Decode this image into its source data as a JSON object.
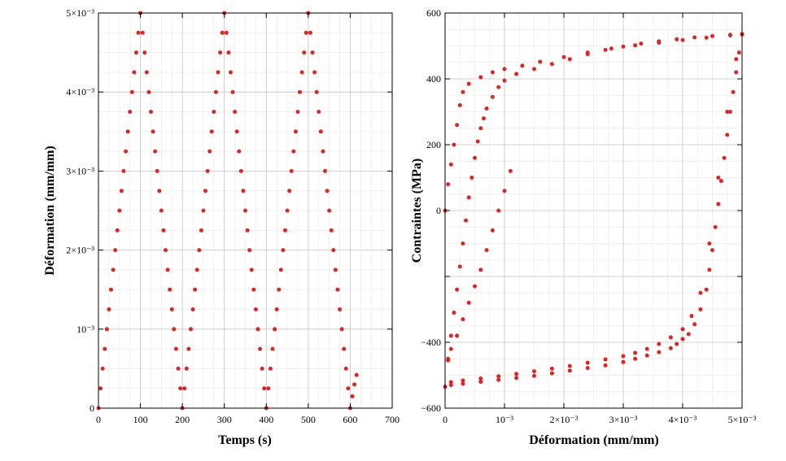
{
  "chart_data": [
    {
      "type": "scatter",
      "title": "",
      "xlabel": "Temps (s)",
      "ylabel": "Déformation (mm/mm)",
      "xlim": [
        0,
        700
      ],
      "ylim": [
        0,
        0.005
      ],
      "grid": true,
      "marker_color": "#e02424",
      "xticks": [
        {
          "value": 0,
          "label": "0"
        },
        {
          "value": 100,
          "label": "100"
        },
        {
          "value": 200,
          "label": "200"
        },
        {
          "value": 300,
          "label": "300"
        },
        {
          "value": 400,
          "label": "400"
        },
        {
          "value": 500,
          "label": "500"
        },
        {
          "value": 600,
          "label": "600"
        },
        {
          "value": 700,
          "label": "700"
        }
      ],
      "yticks": [
        {
          "value": 0,
          "label": "0"
        },
        {
          "value": 0.001,
          "label": "10⁻³"
        },
        {
          "value": 0.002,
          "label": "2×10⁻³"
        },
        {
          "value": 0.003,
          "label": "3×10⁻³"
        },
        {
          "value": 0.004,
          "label": "4×10⁻³"
        },
        {
          "value": 0.005,
          "label": "5×10⁻³"
        }
      ],
      "x": [
        0,
        5,
        10,
        15,
        20,
        25,
        30,
        35,
        40,
        45,
        50,
        55,
        60,
        65,
        70,
        75,
        80,
        85,
        90,
        95,
        100,
        105,
        110,
        115,
        120,
        125,
        130,
        135,
        140,
        145,
        150,
        155,
        160,
        165,
        170,
        175,
        180,
        185,
        190,
        195,
        200,
        205,
        210,
        215,
        220,
        225,
        230,
        235,
        240,
        245,
        250,
        255,
        260,
        265,
        270,
        275,
        280,
        285,
        290,
        295,
        300,
        305,
        310,
        315,
        320,
        325,
        330,
        335,
        340,
        345,
        350,
        355,
        360,
        365,
        370,
        375,
        380,
        385,
        390,
        395,
        400,
        405,
        410,
        415,
        420,
        425,
        430,
        435,
        440,
        445,
        450,
        455,
        460,
        465,
        470,
        475,
        480,
        485,
        490,
        495,
        500,
        505,
        510,
        515,
        520,
        525,
        530,
        535,
        540,
        545,
        550,
        555,
        560,
        565,
        570,
        575,
        580,
        585,
        590,
        595,
        600,
        605,
        610,
        615
      ],
      "y": [
        0,
        0.00025,
        0.0005,
        0.00075,
        0.001,
        0.00125,
        0.0015,
        0.00175,
        0.002,
        0.00225,
        0.0025,
        0.00275,
        0.003,
        0.00325,
        0.0035,
        0.00375,
        0.004,
        0.00425,
        0.0045,
        0.00475,
        0.005,
        0.00475,
        0.0045,
        0.00425,
        0.004,
        0.00375,
        0.0035,
        0.00325,
        0.003,
        0.00275,
        0.0025,
        0.00225,
        0.002,
        0.00175,
        0.0015,
        0.00125,
        0.001,
        0.00075,
        0.0005,
        0.00025,
        0,
        0.00025,
        0.0005,
        0.00075,
        0.001,
        0.00125,
        0.0015,
        0.00175,
        0.002,
        0.00225,
        0.0025,
        0.00275,
        0.003,
        0.00325,
        0.0035,
        0.00375,
        0.004,
        0.00425,
        0.0045,
        0.00475,
        0.005,
        0.00475,
        0.0045,
        0.00425,
        0.004,
        0.00375,
        0.0035,
        0.00325,
        0.003,
        0.00275,
        0.0025,
        0.00225,
        0.002,
        0.00175,
        0.0015,
        0.00125,
        0.001,
        0.00075,
        0.0005,
        0.00025,
        0,
        0.00025,
        0.0005,
        0.00075,
        0.001,
        0.00125,
        0.0015,
        0.00175,
        0.002,
        0.00225,
        0.0025,
        0.00275,
        0.003,
        0.00325,
        0.0035,
        0.00375,
        0.004,
        0.00425,
        0.0045,
        0.00475,
        0.005,
        0.00475,
        0.0045,
        0.00425,
        0.004,
        0.00375,
        0.0035,
        0.00325,
        0.003,
        0.00275,
        0.0025,
        0.00225,
        0.002,
        0.00175,
        0.0015,
        0.00125,
        0.001,
        0.00075,
        0.0005,
        0.00025,
        0,
        0.00015,
        0.0003,
        0.00042
      ]
    },
    {
      "type": "scatter",
      "title": "",
      "xlabel": "Déformation (mm/mm)",
      "ylabel": "Contraintes (MPa)",
      "xlim": [
        0,
        0.005
      ],
      "ylim": [
        -600,
        600
      ],
      "grid": true,
      "marker_color": "#e02424",
      "xticks": [
        {
          "value": 0,
          "label": "0"
        },
        {
          "value": 0.001,
          "label": "10⁻³"
        },
        {
          "value": 0.002,
          "label": "2×10⁻³"
        },
        {
          "value": 0.003,
          "label": "3×10⁻³"
        },
        {
          "value": 0.004,
          "label": "4×10⁻³"
        },
        {
          "value": 0.005,
          "label": "5×10⁻³"
        }
      ],
      "yticks": [
        {
          "value": -600,
          "label": "−600"
        },
        {
          "value": -400,
          "label": "−400"
        },
        {
          "value": -200,
          "label": ""
        },
        {
          "value": 0,
          "label": "0"
        },
        {
          "value": 200,
          "label": "200"
        },
        {
          "value": 400,
          "label": "400"
        },
        {
          "value": 600,
          "label": "600"
        }
      ],
      "x": [
        0,
        5e-05,
        0.0001,
        0.00015,
        0.0002,
        0.00025,
        0.0003,
        0.0004,
        0.0006,
        0.0008,
        0.001,
        0.0013,
        0.0016,
        0.002,
        0.0024,
        0.0028,
        0.0032,
        0.0036,
        0.004,
        0.0044,
        0.0048,
        0.005,
        0.00495,
        0.0049,
        0.00485,
        0.0048,
        0.00475,
        0.0047,
        0.00465,
        0.0046,
        0.00455,
        0.0045,
        0.00445,
        0.0044,
        0.0043,
        0.0042,
        0.0041,
        0.004,
        0.0039,
        0.0038,
        0.0036,
        0.0034,
        0.0032,
        0.003,
        0.0027,
        0.0024,
        0.0021,
        0.0018,
        0.0015,
        0.0012,
        0.0009,
        0.0006,
        0.0003,
        0.0001,
        0,
        5e-05,
        0.0001,
        0.00015,
        0.0002,
        0.00025,
        0.0003,
        0.00035,
        0.0004,
        0.00045,
        0.0005,
        0.00055,
        0.0006,
        0.00065,
        0.0007,
        0.0008,
        0.0009,
        0.001,
        0.0012,
        0.0015,
        0.0018,
        0.0021,
        0.0024,
        0.0027,
        0.003,
        0.0033,
        0.0036,
        0.0039,
        0.0042,
        0.0045,
        0.0048,
        0.005,
        0.0049,
        0.00475,
        0.0046,
        0.00445,
        0.0043,
        0.00415,
        0.004,
        0.0038,
        0.0036,
        0.0034,
        0.0032,
        0.003,
        0.0027,
        0.0024,
        0.0021,
        0.0018,
        0.0015,
        0.0012,
        0.0009,
        0.0006,
        0.0003,
        0.0001,
        5e-05,
        0.0001,
        0.0002,
        0.0003,
        0.0004,
        0.0005,
        0.0006,
        0.0007,
        0.0008,
        0.0009,
        0.001,
        0.0011
      ],
      "y": [
        0,
        80,
        140,
        200,
        260,
        320,
        360,
        385,
        405,
        420,
        430,
        440,
        452,
        466,
        480,
        492,
        502,
        510,
        518,
        525,
        532,
        535,
        480,
        420,
        360,
        300,
        230,
        160,
        90,
        20,
        -50,
        -120,
        -180,
        -240,
        -300,
        -345,
        -375,
        -390,
        -405,
        -418,
        -430,
        -440,
        -450,
        -460,
        -470,
        -478,
        -486,
        -494,
        -502,
        -508,
        -514,
        -520,
        -526,
        -530,
        -535,
        -450,
        -380,
        -310,
        -240,
        -170,
        -100,
        -30,
        40,
        100,
        160,
        210,
        250,
        280,
        310,
        345,
        375,
        395,
        415,
        430,
        445,
        460,
        475,
        488,
        498,
        507,
        514,
        520,
        526,
        530,
        534,
        536,
        460,
        300,
        100,
        -100,
        -250,
        -320,
        -360,
        -385,
        -405,
        -420,
        -432,
        -442,
        -452,
        -462,
        -472,
        -480,
        -488,
        -496,
        -503,
        -510,
        -516,
        -521,
        -455,
        -420,
        -380,
        -330,
        -280,
        -230,
        -180,
        -120,
        -60,
        0,
        60,
        120
      ]
    }
  ]
}
